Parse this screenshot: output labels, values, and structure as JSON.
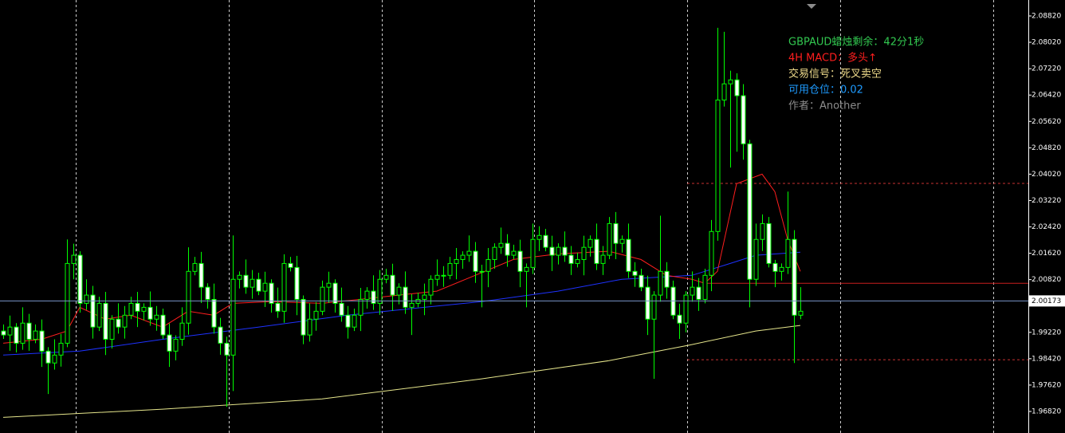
{
  "chart_data": {
    "type": "candlestick",
    "up_color": "#000000",
    "down_color": "#ffffff",
    "wick_color": "#00ff00",
    "ylim": [
      1.96166,
      2.09304
    ],
    "yticks": [
      {
        "value": 2.0882,
        "label": "2.08820"
      },
      {
        "value": 2.0802,
        "label": "2.08020"
      },
      {
        "value": 2.0722,
        "label": "2.07220"
      },
      {
        "value": 2.0642,
        "label": "2.06420"
      },
      {
        "value": 2.0562,
        "label": "2.05620"
      },
      {
        "value": 2.0482,
        "label": "2.04820"
      },
      {
        "value": 2.0402,
        "label": "2.04020"
      },
      {
        "value": 2.0322,
        "label": "2.03220"
      },
      {
        "value": 2.0242,
        "label": "2.02420"
      },
      {
        "value": 2.0162,
        "label": "2.01620"
      },
      {
        "value": 2.0082,
        "label": "2.00820"
      },
      {
        "value": 1.9922,
        "label": "1.99220"
      },
      {
        "value": 1.9842,
        "label": "1.98420"
      },
      {
        "value": 1.9762,
        "label": "1.97620"
      },
      {
        "value": 1.9682,
        "label": "1.96820"
      }
    ],
    "current_price": 2.00173,
    "current_color": "#7894c8",
    "candles": [
      [
        1.9926,
        1.9946,
        1.9902,
        1.9914
      ],
      [
        1.9914,
        1.9973,
        1.9866,
        1.9938
      ],
      [
        1.9938,
        1.995,
        1.9861,
        1.9889
      ],
      [
        1.9889,
        1.9998,
        1.9869,
        1.995
      ],
      [
        1.995,
        1.9978,
        1.9866,
        1.9901
      ],
      [
        1.9901,
        1.9946,
        1.9889,
        1.9926
      ],
      [
        1.9926,
        1.9961,
        1.9817,
        1.9865
      ],
      [
        1.9865,
        1.9877,
        1.9735,
        1.9829
      ],
      [
        1.9829,
        1.9901,
        1.9809,
        1.9853
      ],
      [
        1.9853,
        1.9917,
        1.9818,
        1.9889
      ],
      [
        1.9889,
        2.0204,
        1.9877,
        2.0131
      ],
      [
        2.0131,
        2.0191,
        2.0083,
        2.0156
      ],
      [
        2.0156,
        2.0168,
        1.9982,
        2.001
      ],
      [
        2.001,
        2.0083,
        1.999,
        2.0035
      ],
      [
        2.0035,
        2.0063,
        1.9903,
        1.9938
      ],
      [
        1.9938,
        2.003,
        1.9926,
        2.001
      ],
      [
        2.001,
        2.0045,
        1.9853,
        1.9901
      ],
      [
        1.9901,
        1.9974,
        1.9873,
        1.9962
      ],
      [
        1.9962,
        2.001,
        1.9918,
        1.9938
      ],
      [
        1.9938,
        2.0002,
        1.9903,
        1.9974
      ],
      [
        1.9974,
        2.003,
        1.9962,
        2.001
      ],
      [
        2.001,
        2.0045,
        1.9938,
        1.9986
      ],
      [
        1.9986,
        2.001,
        1.9958,
        1.9998
      ],
      [
        1.9998,
        2.0046,
        1.9942,
        1.9962
      ],
      [
        1.9962,
        2.0002,
        1.9927,
        1.9974
      ],
      [
        1.9974,
        1.9994,
        1.9902,
        1.9914
      ],
      [
        1.9914,
        1.9949,
        1.9817,
        1.9865
      ],
      [
        1.9865,
        1.9913,
        1.9837,
        1.9901
      ],
      [
        1.9901,
        1.9998,
        1.9881,
        1.995
      ],
      [
        1.995,
        2.018,
        1.9915,
        2.0107
      ],
      [
        2.0107,
        2.0151,
        2.0095,
        2.0131
      ],
      [
        2.0131,
        2.0166,
        2.0011,
        2.0059
      ],
      [
        2.0059,
        2.0071,
        1.9994,
        2.0022
      ],
      [
        2.0022,
        2.007,
        1.9918,
        1.9938
      ],
      [
        1.9938,
        1.9966,
        1.9854,
        1.9889
      ],
      [
        1.9889,
        1.9909,
        1.9696,
        1.9853
      ],
      [
        1.9853,
        2.0216,
        1.9744,
        2.0083
      ],
      [
        2.0083,
        2.0107,
        2.0055,
        2.0095
      ],
      [
        2.0095,
        2.0143,
        2.0039,
        2.0059
      ],
      [
        2.0059,
        2.0111,
        2.0024,
        2.0083
      ],
      [
        2.0083,
        2.0103,
        2.0035,
        2.0047
      ],
      [
        2.0047,
        2.0106,
        1.9999,
        2.0071
      ],
      [
        2.0071,
        2.0083,
        1.9982,
        2.001
      ],
      [
        2.001,
        2.0058,
        1.9966,
        1.9986
      ],
      [
        1.9986,
        2.0159,
        1.9951,
        2.0131
      ],
      [
        2.0131,
        2.0151,
        2.0107,
        2.0119
      ],
      [
        2.0119,
        2.0154,
        1.9974,
        2.0022
      ],
      [
        2.0022,
        2.0034,
        1.9886,
        1.9914
      ],
      [
        1.9914,
        2.001,
        1.9894,
        1.9962
      ],
      [
        1.9962,
        2.0014,
        1.9927,
        1.9986
      ],
      [
        1.9986,
        2.0079,
        1.9974,
        2.0059
      ],
      [
        2.0059,
        2.0106,
        2.0011,
        2.0071
      ],
      [
        2.0071,
        2.0083,
        1.9982,
        2.001
      ],
      [
        2.001,
        2.0058,
        1.9954,
        1.9974
      ],
      [
        1.9974,
        2.0002,
        1.9903,
        1.9938
      ],
      [
        1.9938,
        1.9994,
        1.9926,
        1.9974
      ],
      [
        1.9974,
        2.0057,
        1.9926,
        2.0022
      ],
      [
        2.0022,
        2.0059,
        1.9994,
        2.0047
      ],
      [
        2.0047,
        2.0095,
        1.999,
        2.001
      ],
      [
        2.001,
        2.0111,
        1.9975,
        2.0083
      ],
      [
        2.0083,
        2.0115,
        2.0071,
        2.0095
      ],
      [
        2.0095,
        2.013,
        1.9987,
        2.0035
      ],
      [
        2.0035,
        2.0071,
        2.0007,
        2.0059
      ],
      [
        2.0059,
        2.0107,
        1.9978,
        1.9998
      ],
      [
        1.9998,
        2.0038,
        1.9914,
        2.001
      ],
      [
        2.001,
        2.0042,
        1.9998,
        2.0022
      ],
      [
        2.0022,
        2.007,
        1.9974,
        2.0035
      ],
      [
        2.0035,
        2.0095,
        2.0007,
        2.0083
      ],
      [
        2.0083,
        2.0143,
        2.0063,
        2.0095
      ],
      [
        2.0095,
        2.0123,
        2.006,
        2.0095
      ],
      [
        2.0095,
        2.0151,
        2.0083,
        2.0131
      ],
      [
        2.0131,
        2.0178,
        2.0083,
        2.0143
      ],
      [
        2.0143,
        2.0168,
        2.0115,
        2.0156
      ],
      [
        2.0156,
        2.0216,
        2.0136,
        2.0168
      ],
      [
        2.0168,
        2.0196,
        2.0072,
        2.0107
      ],
      [
        2.0107,
        2.0127,
        1.9998,
        2.0107
      ],
      [
        2.0107,
        2.0178,
        2.0059,
        2.0143
      ],
      [
        2.0143,
        2.0192,
        2.0115,
        2.018
      ],
      [
        2.018,
        2.024,
        2.016,
        2.0192
      ],
      [
        2.0192,
        2.022,
        2.0121,
        2.0156
      ],
      [
        2.0156,
        2.0188,
        2.0144,
        2.0168
      ],
      [
        2.0168,
        2.0203,
        2.0059,
        2.0107
      ],
      [
        2.0107,
        2.0131,
        1.9998,
        2.0119
      ],
      [
        2.0119,
        2.0252,
        2.0099,
        2.0204
      ],
      [
        2.0204,
        2.0244,
        2.0169,
        2.0216
      ],
      [
        2.0216,
        2.0236,
        2.0168,
        2.018
      ],
      [
        2.018,
        2.0215,
        2.0108,
        2.0156
      ],
      [
        2.0156,
        2.0192,
        2.0128,
        2.018
      ],
      [
        2.018,
        2.0228,
        2.0136,
        2.0156
      ],
      [
        2.0156,
        2.0184,
        2.0096,
        2.0131
      ],
      [
        2.0131,
        2.0163,
        2.0119,
        2.0143
      ],
      [
        2.0143,
        2.0215,
        2.0095,
        2.018
      ],
      [
        2.018,
        2.0216,
        2.0152,
        2.0204
      ],
      [
        2.0204,
        2.0252,
        2.0111,
        2.0131
      ],
      [
        2.0131,
        2.0184,
        2.0096,
        2.0156
      ],
      [
        2.0156,
        2.0272,
        2.0144,
        2.0252
      ],
      [
        2.0252,
        2.0287,
        2.0144,
        2.0192
      ],
      [
        2.0192,
        2.0216,
        2.0164,
        2.0204
      ],
      [
        2.0204,
        2.0252,
        2.0087,
        2.0107
      ],
      [
        2.0107,
        2.0135,
        2.006,
        2.0095
      ],
      [
        2.0095,
        2.0115,
        2.0047,
        2.0059
      ],
      [
        2.0059,
        2.0094,
        1.9914,
        1.9962
      ],
      [
        1.9962,
        2.0047,
        1.9781,
        2.0035
      ],
      [
        2.0035,
        2.0276,
        2.0015,
        2.0107
      ],
      [
        2.0107,
        2.0135,
        2.0024,
        2.0059
      ],
      [
        2.0059,
        2.0079,
        1.9962,
        1.9974
      ],
      [
        1.9974,
        2.0009,
        1.9902,
        1.995
      ],
      [
        1.995,
        2.0047,
        1.9922,
        2.0035
      ],
      [
        2.0035,
        2.0107,
        2.0015,
        2.0059
      ],
      [
        2.0059,
        2.0087,
        1.9987,
        2.0022
      ],
      [
        2.0022,
        2.0115,
        2.001,
        2.0095
      ],
      [
        2.0095,
        2.0263,
        2.0047,
        2.0228
      ],
      [
        2.0228,
        2.0846,
        2.02,
        2.0627
      ],
      [
        2.0627,
        2.0834,
        2.0607,
        2.0676
      ],
      [
        2.0676,
        2.0716,
        2.0422,
        2.0688
      ],
      [
        2.0688,
        2.0708,
        2.047,
        2.064
      ],
      [
        2.064,
        2.0675,
        2.0446,
        2.0494
      ],
      [
        2.0494,
        2.0506,
        1.9998,
        2.0083
      ],
      [
        2.0083,
        2.0252,
        2.0063,
        2.0204
      ],
      [
        2.0204,
        2.028,
        2.0169,
        2.0252
      ],
      [
        2.0252,
        2.0272,
        2.0119,
        2.0131
      ],
      [
        2.0131,
        2.0142,
        2.0059,
        2.0107
      ],
      [
        2.0107,
        2.0131,
        2.0079,
        2.0119
      ],
      [
        2.0119,
        2.0349,
        2.0099,
        2.0204
      ],
      [
        2.0204,
        2.0232,
        1.9829,
        1.9974
      ],
      [
        1.9974,
        2.0059,
        1.9962,
        1.9986
      ]
    ],
    "lines": [
      {
        "color": "#e6e68c",
        "x": [
          0,
          25,
          50,
          75,
          95,
          108,
          118,
          125
        ],
        "values": [
          1.9664,
          1.9689,
          1.972,
          1.9781,
          1.9836,
          1.9885,
          1.9926,
          1.9943
        ]
      },
      {
        "color": "#1e32ff",
        "x": [
          0,
          12,
          25,
          40,
          54,
          66,
          75,
          87,
          97,
          108,
          114,
          118,
          125
        ],
        "values": [
          1.9853,
          1.9865,
          1.9901,
          1.9938,
          1.9974,
          1.9998,
          2.0015,
          2.0047,
          2.0083,
          2.0095,
          2.0131,
          2.0156,
          2.0165
        ]
      },
      {
        "color": "#ff1e1e",
        "x": [
          0,
          6,
          10,
          12,
          16,
          20,
          25,
          29,
          33,
          36,
          42,
          50,
          56,
          62,
          68,
          74,
          80,
          87,
          95,
          100,
          104,
          108,
          110,
          112,
          115,
          119,
          121,
          123,
          125
        ],
        "values": [
          1.9889,
          1.9901,
          1.9926,
          1.9998,
          1.9962,
          1.9974,
          1.9938,
          1.9986,
          1.9974,
          2.001,
          2.0015,
          2.001,
          2.0022,
          2.0035,
          2.0047,
          2.0095,
          2.0143,
          2.016,
          2.0168,
          2.0143,
          2.0095,
          2.0083,
          2.0071,
          2.0107,
          2.0373,
          2.0402,
          2.0349,
          2.0204,
          2.0107
        ]
      }
    ],
    "levels": [
      {
        "value": 2.0374,
        "color": "#c83232",
        "dashed": true
      },
      {
        "value": 1.9839,
        "color": "#c83232",
        "dashed": true
      },
      {
        "value": 2.0071,
        "color": "#c81e1e",
        "dashed": false
      }
    ]
  },
  "indicator_panel": [
    {
      "text": "GBPAUD蜡烛剩余：42分1秒",
      "color": "#32c850"
    },
    {
      "text": "4H MACD：多头↑",
      "color": "#ff1e1e"
    },
    {
      "text": "交易信号：死叉卖空",
      "color": "#f0dc8c"
    },
    {
      "text": "可用仓位：0.02",
      "color": "#1e9bff"
    },
    {
      "text": "作者：Another",
      "color": "#8c8c8c"
    }
  ]
}
